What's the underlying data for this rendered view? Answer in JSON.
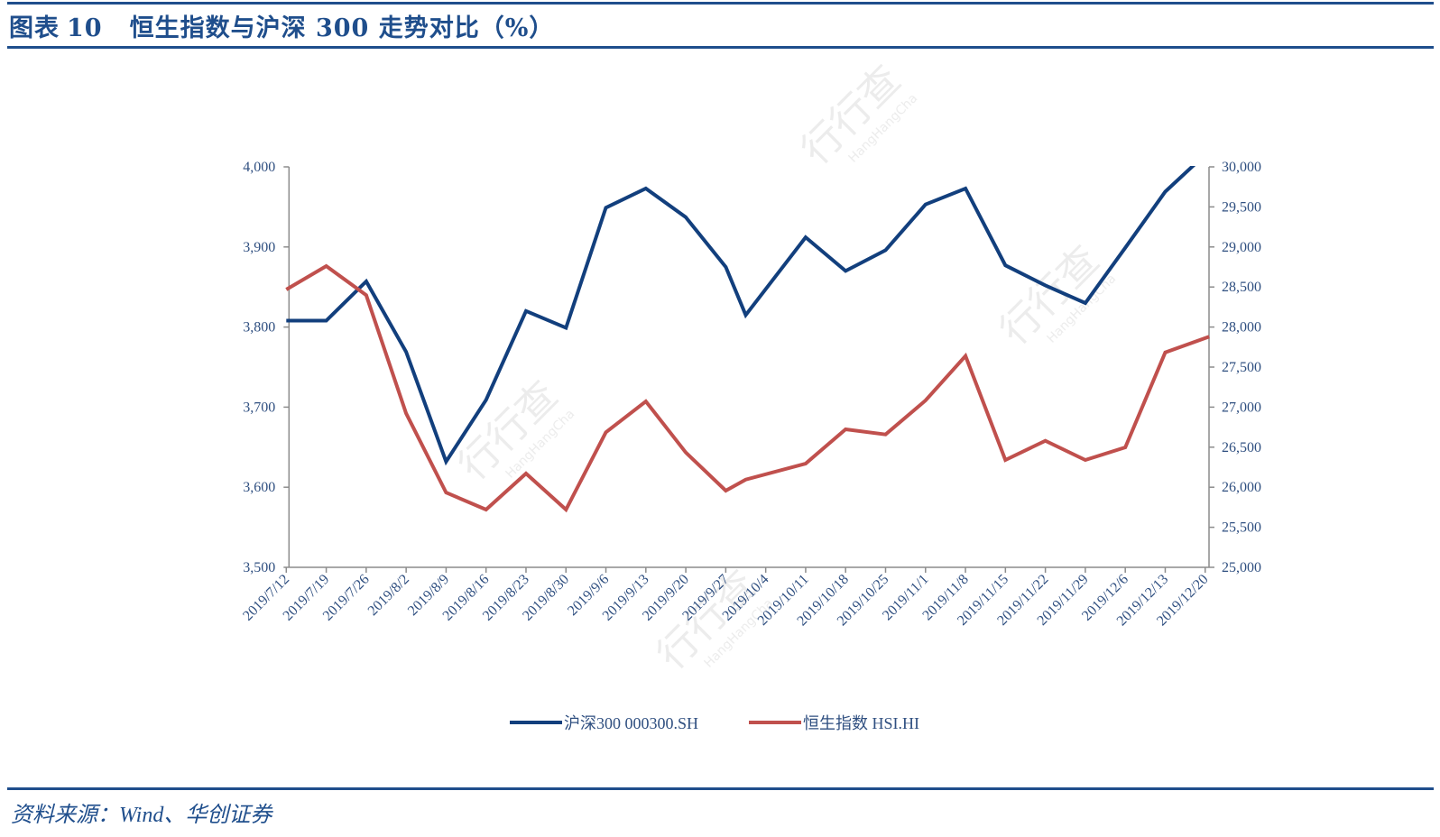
{
  "header": {
    "figure_label": "图表",
    "figure_number": "10",
    "title": "恒生指数与沪深 300 走势对比（%）"
  },
  "source": "资料来源：Wind、华创证券",
  "watermark": {
    "cn": "行行查",
    "en": "HangHangCha"
  },
  "legend": [
    {
      "label": "沪深300  000300.SH",
      "color": "#123f7d"
    },
    {
      "label": "恒生指数  HSI.HI",
      "color": "#c0504d"
    }
  ],
  "chart_data": {
    "type": "line",
    "title": "恒生指数与沪深 300 走势对比（%）",
    "xlabel": "",
    "ylabel_left": "沪深300",
    "ylabel_right": "恒生指数",
    "categories": [
      "2019/7/12",
      "2019/7/19",
      "2019/7/26",
      "2019/8/2",
      "2019/8/9",
      "2019/8/16",
      "2019/8/23",
      "2019/8/30",
      "2019/9/6",
      "2019/9/13",
      "2019/9/20",
      "2019/9/27",
      "2019/10/4",
      "2019/10/11",
      "2019/10/18",
      "2019/10/25",
      "2019/11/1",
      "2019/11/8",
      "2019/11/15",
      "2019/11/22",
      "2019/11/29",
      "2019/12/6",
      "2019/12/13",
      "2019/12/20"
    ],
    "x_positions": [
      0,
      1,
      2,
      3,
      4,
      5,
      6,
      7,
      8,
      9,
      10,
      11,
      11.5,
      13,
      14,
      15,
      16,
      17,
      18,
      19,
      20,
      21,
      22,
      23.1
    ],
    "left_axis": {
      "min": 3500,
      "max": 4000,
      "step": 100,
      "ticks": [
        "3,500",
        "3,600",
        "3,700",
        "3,800",
        "3,900",
        "4,000"
      ]
    },
    "right_axis": {
      "min": 25000,
      "max": 30000,
      "step": 500,
      "ticks": [
        "25,000",
        "25,500",
        "26,000",
        "26,500",
        "27,000",
        "27,500",
        "28,000",
        "28,500",
        "29,000",
        "29,500",
        "30,000"
      ]
    },
    "series": [
      {
        "name": "沪深300  000300.SH",
        "axis": "left",
        "color": "#123f7d",
        "values": [
          3808,
          3808,
          3857,
          3769,
          3632,
          3709,
          3820,
          3799,
          3949,
          3973,
          3937,
          3875,
          3815,
          3912,
          3870,
          3896,
          3953,
          3973,
          3877,
          3852,
          3830,
          3899,
          3969,
          4020
        ]
      },
      {
        "name": "恒生指数  HSI.HI",
        "axis": "right",
        "color": "#c0504d",
        "values": [
          28468,
          28761,
          28397,
          26922,
          25934,
          25721,
          26171,
          25721,
          26686,
          27072,
          26433,
          25957,
          26096,
          26295,
          26723,
          26659,
          27083,
          27638,
          26340,
          26580,
          26340,
          26498,
          27683,
          27879
        ]
      }
    ],
    "grid": false,
    "legend_position": "bottom"
  }
}
